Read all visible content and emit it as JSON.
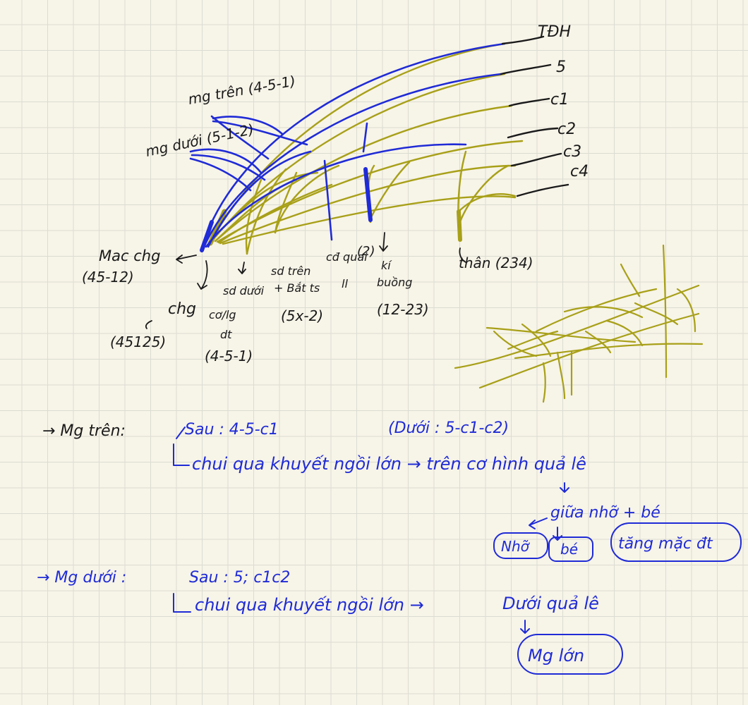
{
  "colors": {
    "paper": "#f7f4e8",
    "grid": "#dcdcd2",
    "blue_ink": "#1f2bd6",
    "olive_ink": "#a8a018",
    "black_ink": "#1a1a1a"
  },
  "diagram": {
    "right_labels": [
      "TĐH",
      "5",
      "c1",
      "c2",
      "c3",
      "c4"
    ],
    "top_labels": {
      "mg_tren": "mg trên (4-5-1)",
      "mg_duoi": "mg dưới (5-1-2)"
    },
    "bottom_labels": {
      "mac_chg": "Mac chg",
      "mac_chg_code": "(45-12)",
      "chg": "chg",
      "chg_code": "(45125)",
      "sd_duoi": "sd dưới",
      "cai_lg": "cơ/lg",
      "dt": "dt",
      "dt_code": "(4-5-1)",
      "sd_tren": "sd trên",
      "bat_ts": "+ Bắt ts",
      "sd_tren_code": "(5x-2)",
      "cd_quai": "cđ quai",
      "ll": "ll",
      "two": "(2)",
      "ki_bang": "kí",
      "buttom": "buồng",
      "buttom_code": "(12-23)",
      "than": "thân (234)"
    }
  },
  "notes": {
    "line1_prefix": "→ Mg trên:",
    "line1_sau": "Sau : 4-5-c1",
    "line1_duoi": "(Dưới : 5-c1-c2)",
    "line2": "chui qua khuyết ngồi lớn → trên cơ hình quả lê",
    "line3": "giữa nhỡ + bé",
    "box_nho": "Nhỡ",
    "box_be": "bé",
    "box_tang": "tăng mặc đt",
    "line4_prefix": "→ Mg dưới :",
    "line4_sau": "Sau : 5; c1c2",
    "line5": "chui qua khuyết ngồi lớn →",
    "line5_tail": "Dưới quả lê",
    "box_mg_lon": "Mg lớn"
  }
}
